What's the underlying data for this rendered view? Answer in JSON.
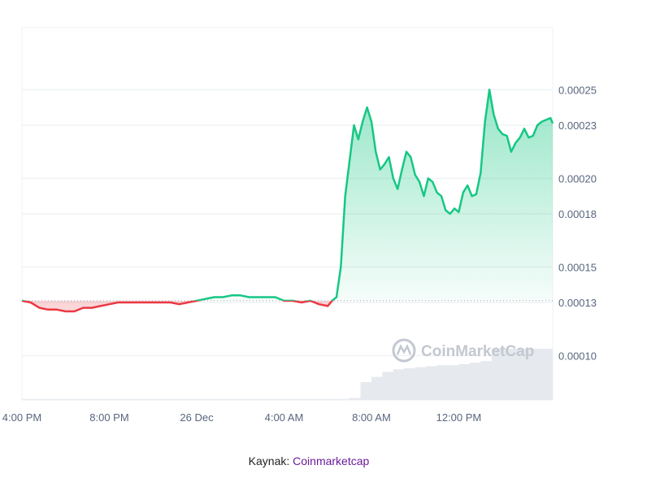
{
  "chart_data": {
    "type": "line",
    "baseline": 0.000131,
    "ylim": [
      7.5e-05,
      0.000285
    ],
    "y_ticks": [
      "0.00010",
      "0.00013",
      "0.00015",
      "0.00018",
      "0.00020",
      "0.00023",
      "0.00025"
    ],
    "y_tick_values": [
      0.0001,
      0.00013,
      0.00015,
      0.00018,
      0.0002,
      0.00023,
      0.00025
    ],
    "x_ticks": [
      "4:00 PM",
      "8:00 PM",
      "26 Dec",
      "4:00 AM",
      "8:00 AM",
      "12:00 PM"
    ],
    "x_tick_hours": [
      0,
      4,
      8,
      12,
      16,
      20
    ],
    "x_range_hours": [
      0,
      24.3
    ],
    "series": [
      {
        "x_hours": [
          0,
          0.4,
          0.8,
          1.2,
          1.6,
          2.0,
          2.4,
          2.8,
          3.2,
          3.6,
          4.0,
          4.4,
          4.8,
          5.2,
          5.6,
          6.0,
          6.4,
          6.8,
          7.2,
          7.6,
          8.0,
          8.4,
          8.8,
          9.2,
          9.6,
          10.0,
          10.4,
          10.8,
          11.2,
          11.6,
          12.0,
          12.4,
          12.8,
          13.2,
          13.6,
          14.0,
          14.2,
          14.4,
          14.6,
          14.8,
          15.0,
          15.2,
          15.4,
          15.6,
          15.8,
          16.0,
          16.2,
          16.4,
          16.6,
          16.8,
          17.0,
          17.2,
          17.4,
          17.6,
          17.8,
          18.0,
          18.2,
          18.4,
          18.6,
          18.8,
          19.0,
          19.2,
          19.4,
          19.6,
          19.8,
          20.0,
          20.2,
          20.4,
          20.6,
          20.8,
          21.0,
          21.2,
          21.4,
          21.6,
          21.8,
          22.0,
          22.2,
          22.4,
          22.6,
          22.8,
          23.0,
          23.2,
          23.4,
          23.6,
          23.8,
          24.0,
          24.2,
          24.3
        ],
        "values": [
          0.000131,
          0.00013,
          0.000127,
          0.000126,
          0.000126,
          0.000125,
          0.000125,
          0.000127,
          0.000127,
          0.000128,
          0.000129,
          0.00013,
          0.00013,
          0.00013,
          0.00013,
          0.00013,
          0.00013,
          0.00013,
          0.000129,
          0.00013,
          0.000131,
          0.000132,
          0.000133,
          0.000133,
          0.000134,
          0.000134,
          0.000133,
          0.000133,
          0.000133,
          0.000133,
          0.000131,
          0.000131,
          0.00013,
          0.000131,
          0.000129,
          0.000128,
          0.000131,
          0.000133,
          0.00015,
          0.00019,
          0.00021,
          0.00023,
          0.000222,
          0.000232,
          0.00024,
          0.000232,
          0.000215,
          0.000205,
          0.000208,
          0.000212,
          0.0002,
          0.000194,
          0.000205,
          0.000215,
          0.000212,
          0.000202,
          0.000198,
          0.00019,
          0.0002,
          0.000198,
          0.000192,
          0.00019,
          0.000182,
          0.00018,
          0.000183,
          0.000181,
          0.000192,
          0.000196,
          0.00019,
          0.000191,
          0.000203,
          0.000232,
          0.00025,
          0.000236,
          0.000228,
          0.000225,
          0.000224,
          0.000215,
          0.00022,
          0.000223,
          0.000228,
          0.000223,
          0.000224,
          0.00023,
          0.000232,
          0.000233,
          0.000234,
          0.000231
        ]
      }
    ],
    "volume": {
      "x_hours": [
        0,
        15.0,
        15.5,
        16.0,
        16.5,
        17.0,
        17.5,
        18.0,
        18.5,
        19.0,
        19.5,
        20.0,
        20.5,
        21.0,
        21.5,
        22.0,
        22.5,
        23.0,
        23.5,
        24.3
      ],
      "levels": [
        0.02,
        0.04,
        0.35,
        0.45,
        0.55,
        0.6,
        0.62,
        0.64,
        0.66,
        0.68,
        0.68,
        0.7,
        0.73,
        0.76,
        1.0,
        1.0,
        1.0,
        1.0,
        1.0,
        1.0
      ]
    },
    "colors": {
      "up": "#16c784",
      "down": "#ea3943",
      "baseline": "#9aa3ad",
      "grid": "#eff2f5",
      "volume": "#e6e9ee"
    }
  },
  "watermark": "CoinMarketCap",
  "source": {
    "prefix": "Kaynak: ",
    "link": "Coinmarketcap"
  }
}
